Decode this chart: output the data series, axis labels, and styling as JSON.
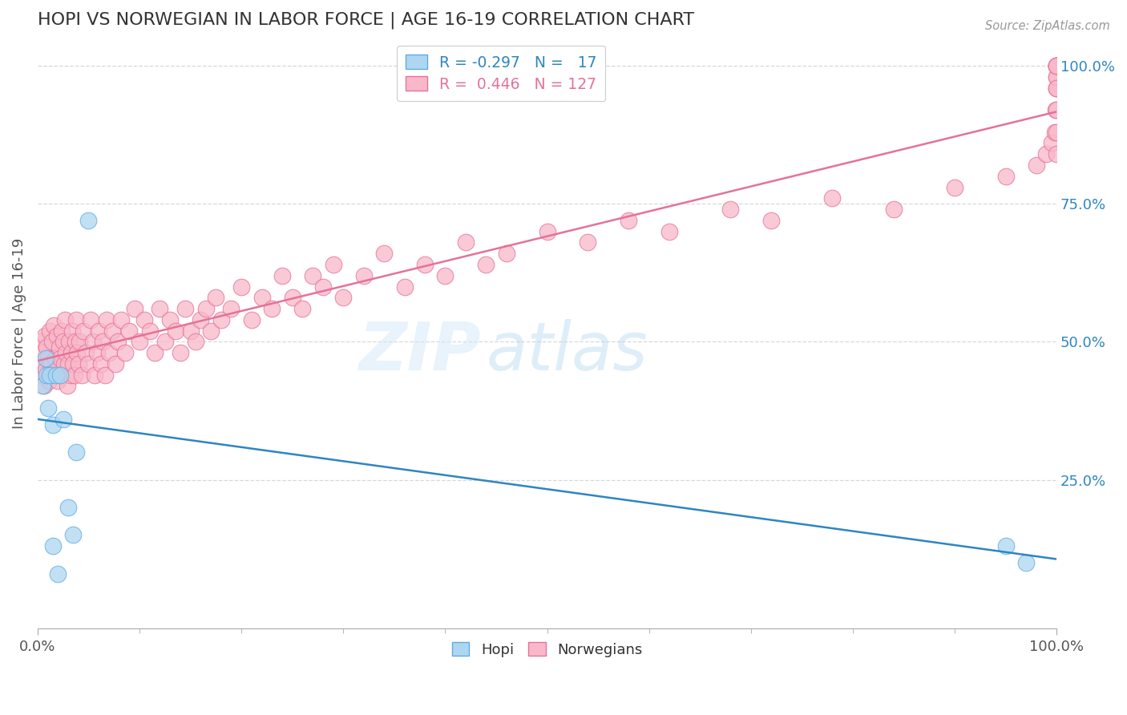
{
  "title": "HOPI VS NORWEGIAN IN LABOR FORCE | AGE 16-19 CORRELATION CHART",
  "source": "Source: ZipAtlas.com",
  "ylabel": "In Labor Force | Age 16-19",
  "xlim": [
    0,
    1
  ],
  "ylim": [
    -0.02,
    1.05
  ],
  "xticks": [
    0.0,
    1.0
  ],
  "xticklabels": [
    "0.0%",
    "100.0%"
  ],
  "yticks_right": [
    0.25,
    0.5,
    0.75,
    1.0
  ],
  "yticklabels_right": [
    "25.0%",
    "50.0%",
    "75.0%",
    "100.0%"
  ],
  "hopi_color": "#aed6f1",
  "hopi_edge": "#5dade2",
  "norwegian_color": "#f9b8c9",
  "norwegian_edge": "#e57298",
  "trend_hopi_color": "#2e86c1",
  "trend_norwegian_color": "#e57298",
  "hopi_R": -0.297,
  "hopi_N": 17,
  "norwegian_R": 0.446,
  "norwegian_N": 127,
  "watermark_zip": "ZIP",
  "watermark_atlas": "atlas",
  "background_color": "#ffffff",
  "grid_color": "#d5d8dc",
  "title_fontsize": 16,
  "tick_label_fontsize": 13,
  "right_tick_color": "#2e86c1",
  "hopi_x": [
    0.005,
    0.008,
    0.009,
    0.01,
    0.012,
    0.015,
    0.015,
    0.018,
    0.02,
    0.022,
    0.025,
    0.03,
    0.035,
    0.038,
    0.05,
    0.95,
    0.97
  ],
  "hopi_y": [
    0.42,
    0.47,
    0.44,
    0.38,
    0.44,
    0.35,
    0.13,
    0.44,
    0.08,
    0.44,
    0.36,
    0.2,
    0.15,
    0.3,
    0.72,
    0.13,
    0.1
  ],
  "norw_x": [
    0.002,
    0.003,
    0.004,
    0.005,
    0.006,
    0.007,
    0.008,
    0.009,
    0.01,
    0.011,
    0.012,
    0.013,
    0.014,
    0.015,
    0.016,
    0.017,
    0.018,
    0.019,
    0.02,
    0.021,
    0.022,
    0.023,
    0.024,
    0.025,
    0.026,
    0.027,
    0.028,
    0.029,
    0.03,
    0.031,
    0.032,
    0.033,
    0.034,
    0.035,
    0.036,
    0.037,
    0.038,
    0.039,
    0.04,
    0.041,
    0.043,
    0.045,
    0.047,
    0.05,
    0.052,
    0.054,
    0.056,
    0.058,
    0.06,
    0.062,
    0.064,
    0.066,
    0.068,
    0.07,
    0.073,
    0.076,
    0.079,
    0.082,
    0.086,
    0.09,
    0.095,
    0.1,
    0.105,
    0.11,
    0.115,
    0.12,
    0.125,
    0.13,
    0.135,
    0.14,
    0.145,
    0.15,
    0.155,
    0.16,
    0.165,
    0.17,
    0.175,
    0.18,
    0.19,
    0.2,
    0.21,
    0.22,
    0.23,
    0.24,
    0.25,
    0.26,
    0.27,
    0.28,
    0.29,
    0.3,
    0.32,
    0.34,
    0.36,
    0.38,
    0.4,
    0.42,
    0.44,
    0.46,
    0.5,
    0.54,
    0.58,
    0.62,
    0.68,
    0.72,
    0.78,
    0.84,
    0.9,
    0.95,
    0.98,
    0.99,
    0.995,
    0.998,
    0.999,
    1.0,
    1.0,
    1.0,
    1.0,
    1.0,
    1.0,
    1.0,
    1.0,
    1.0,
    1.0,
    1.0,
    1.0,
    1.0,
    1.0
  ],
  "norw_y": [
    0.46,
    0.5,
    0.44,
    0.48,
    0.42,
    0.51,
    0.45,
    0.49,
    0.47,
    0.43,
    0.52,
    0.46,
    0.5,
    0.44,
    0.53,
    0.47,
    0.45,
    0.51,
    0.43,
    0.49,
    0.47,
    0.44,
    0.52,
    0.5,
    0.46,
    0.54,
    0.48,
    0.42,
    0.46,
    0.5,
    0.44,
    0.48,
    0.52,
    0.46,
    0.44,
    0.5,
    0.54,
    0.48,
    0.46,
    0.5,
    0.44,
    0.52,
    0.48,
    0.46,
    0.54,
    0.5,
    0.44,
    0.48,
    0.52,
    0.46,
    0.5,
    0.44,
    0.54,
    0.48,
    0.52,
    0.46,
    0.5,
    0.54,
    0.48,
    0.52,
    0.56,
    0.5,
    0.54,
    0.52,
    0.48,
    0.56,
    0.5,
    0.54,
    0.52,
    0.48,
    0.56,
    0.52,
    0.5,
    0.54,
    0.56,
    0.52,
    0.58,
    0.54,
    0.56,
    0.6,
    0.54,
    0.58,
    0.56,
    0.62,
    0.58,
    0.56,
    0.62,
    0.6,
    0.64,
    0.58,
    0.62,
    0.66,
    0.6,
    0.64,
    0.62,
    0.68,
    0.64,
    0.66,
    0.7,
    0.68,
    0.72,
    0.7,
    0.74,
    0.72,
    0.76,
    0.74,
    0.78,
    0.8,
    0.82,
    0.84,
    0.86,
    0.88,
    0.92,
    0.96,
    1.0,
    0.98,
    1.0,
    0.96,
    1.0,
    0.98,
    1.0,
    0.96,
    0.84,
    0.88,
    1.0,
    0.92,
    1.0
  ]
}
